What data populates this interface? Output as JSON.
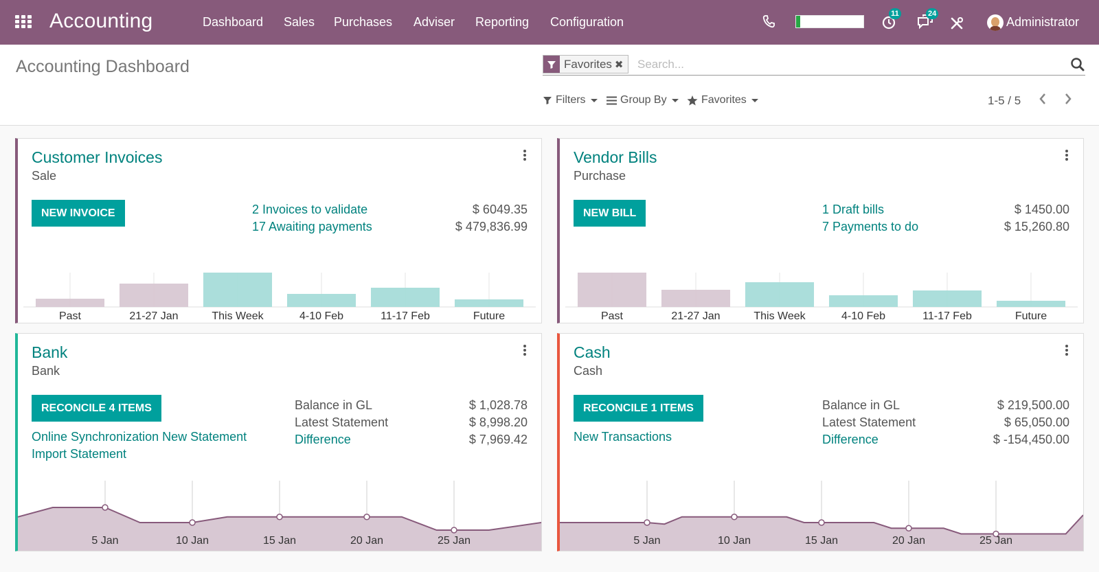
{
  "navbar": {
    "app_title": "Accounting",
    "menus": [
      "Dashboard",
      "Sales",
      "Purchases",
      "Adviser",
      "Reporting",
      "Configuration"
    ],
    "activity_count": "11",
    "message_count": "24",
    "progress_fraction": 0.06,
    "progress_color": "#28a745",
    "user_name": "Administrator",
    "brand_color": "#875a7b"
  },
  "control_panel": {
    "title": "Accounting Dashboard",
    "facet_label": "Favorites",
    "search_placeholder": "Search...",
    "filters_label": "Filters",
    "groupby_label": "Group By",
    "favorites_label": "Favorites",
    "pager": "1-5 / 5"
  },
  "journals": {
    "customer_invoices": {
      "title": "Customer Invoices",
      "type": "Sale",
      "button": "NEW INVOICE",
      "lines": [
        {
          "label": "2 Invoices to validate",
          "amount": "$ 6049.35"
        },
        {
          "label": "17 Awaiting payments",
          "amount": "$ 479,836.99"
        }
      ],
      "chart_data": {
        "type": "bar",
        "categories": [
          "Past",
          "21-27 Jan",
          "This Week",
          "4-10 Feb",
          "11-17 Feb",
          "Future"
        ],
        "values": [
          12,
          34,
          50,
          19,
          28,
          11
        ],
        "colors": [
          "#d8c8d3",
          "#d8c8d3",
          "#a6dcd9",
          "#a6dcd9",
          "#a6dcd9",
          "#a6dcd9"
        ]
      }
    },
    "vendor_bills": {
      "title": "Vendor Bills",
      "type": "Purchase",
      "button": "NEW BILL",
      "lines": [
        {
          "label": "1 Draft bills",
          "amount": "$ 1450.00"
        },
        {
          "label": "7 Payments to do",
          "amount": "$ 15,260.80"
        }
      ],
      "chart_data": {
        "type": "bar",
        "categories": [
          "Past",
          "21-27 Jan",
          "This Week",
          "4-10 Feb",
          "11-17 Feb",
          "Future"
        ],
        "values": [
          50,
          25,
          36,
          17,
          24,
          9
        ],
        "colors": [
          "#d8c8d3",
          "#d8c8d3",
          "#a6dcd9",
          "#a6dcd9",
          "#a6dcd9",
          "#a6dcd9"
        ]
      }
    },
    "bank": {
      "title": "Bank",
      "type": "Bank",
      "button": "RECONCILE 4 ITEMS",
      "links": [
        "Online Synchronization New Statement",
        "Import Statement"
      ],
      "balances": [
        {
          "label": "Balance in GL",
          "amount": "$ 1,028.78",
          "link": false
        },
        {
          "label": "Latest Statement",
          "amount": "$ 8,998.20",
          "link": false
        },
        {
          "label": "Difference",
          "amount": "$ 7,969.42",
          "link": true
        }
      ],
      "chart_data": {
        "type": "area",
        "x_ticks": [
          "5 Jan",
          "10 Jan",
          "15 Jan",
          "20 Jan",
          "25 Jan"
        ],
        "x": [
          0,
          2,
          4,
          5,
          6,
          7,
          8,
          10,
          12,
          15,
          17,
          20,
          22,
          24,
          25,
          27,
          30
        ],
        "values": [
          75,
          100,
          100,
          100,
          80,
          60,
          60,
          60,
          75,
          75,
          75,
          75,
          75,
          40,
          40,
          40,
          60
        ],
        "markers_x": [
          5,
          10,
          15,
          20,
          25
        ]
      }
    },
    "cash": {
      "title": "Cash",
      "type": "Cash",
      "button": "RECONCILE 1 ITEMS",
      "links": [
        "New Transactions"
      ],
      "balances": [
        {
          "label": "Balance in GL",
          "amount": "$ 219,500.00",
          "link": false
        },
        {
          "label": "Latest Statement",
          "amount": "$ 65,050.00",
          "link": false
        },
        {
          "label": "Difference",
          "amount": "$ -154,450.00",
          "link": true
        }
      ],
      "chart_data": {
        "type": "area",
        "x_ticks": [
          "5 Jan",
          "10 Jan",
          "15 Jan",
          "20 Jan",
          "25 Jan"
        ],
        "x": [
          0,
          5,
          6,
          7,
          10,
          13,
          14,
          15,
          18,
          19,
          20,
          22,
          23,
          25,
          29,
          30
        ],
        "values": [
          60,
          60,
          56,
          75,
          75,
          75,
          60,
          60,
          60,
          45,
          45,
          45,
          30,
          30,
          30,
          80
        ],
        "markers_x": [
          5,
          10,
          15,
          20,
          25
        ]
      }
    }
  }
}
